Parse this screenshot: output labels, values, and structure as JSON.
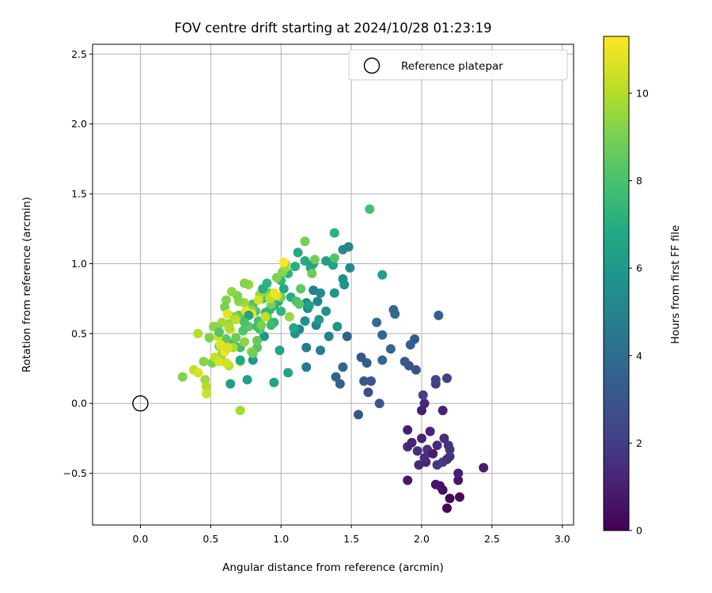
{
  "chart_data": {
    "type": "scatter",
    "title": "FOV centre drift starting at 2024/10/28 01:23:19",
    "xlabel": "Angular distance from reference (arcmin)",
    "ylabel": "Rotation from reference (arcmin)",
    "xlim": [
      -0.34,
      3.08
    ],
    "ylim": [
      -0.87,
      2.57
    ],
    "xticks": [
      0.0,
      0.5,
      1.0,
      1.5,
      2.0,
      2.5,
      3.0
    ],
    "xtick_labels": [
      "0.0",
      "0.5",
      "1.0",
      "1.5",
      "2.0",
      "2.5",
      "3.0"
    ],
    "yticks": [
      -0.5,
      0.0,
      0.5,
      1.0,
      1.5,
      2.0,
      2.5
    ],
    "ytick_labels": [
      "−0.5",
      "0.0",
      "0.5",
      "1.0",
      "1.5",
      "2.0",
      "2.5"
    ],
    "grid": true,
    "colormap": "viridis",
    "colorbar": {
      "label": "Hours from first FF file",
      "range": [
        0,
        11.3
      ],
      "ticks": [
        0,
        2,
        4,
        6,
        8,
        10
      ],
      "tick_labels": [
        "0",
        "2",
        "4",
        "6",
        "8",
        "10"
      ]
    },
    "legend": {
      "placement": "top-right",
      "entries": [
        {
          "label": "Reference platepar",
          "marker": "open-circle",
          "color": "#000000"
        }
      ]
    },
    "reference_point": {
      "x": 0.0,
      "y": 0.0
    },
    "points_format": [
      "x",
      "y",
      "hours"
    ],
    "points": [
      [
        2.18,
        -0.75,
        0.1
      ],
      [
        2.2,
        -0.68,
        0.2
      ],
      [
        2.27,
        -0.67,
        0.3
      ],
      [
        2.15,
        -0.62,
        0.4
      ],
      [
        2.13,
        -0.59,
        0.5
      ],
      [
        2.1,
        -0.58,
        0.6
      ],
      [
        2.26,
        -0.55,
        0.7
      ],
      [
        1.9,
        -0.55,
        0.8
      ],
      [
        2.44,
        -0.46,
        0.9
      ],
      [
        2.26,
        -0.5,
        1.0
      ],
      [
        2.18,
        -0.4,
        1.1
      ],
      [
        2.03,
        -0.42,
        1.2
      ],
      [
        1.98,
        -0.44,
        1.3
      ],
      [
        2.02,
        -0.39,
        1.4
      ],
      [
        2.05,
        -0.35,
        1.5
      ],
      [
        1.97,
        -0.34,
        1.6
      ],
      [
        2.2,
        -0.38,
        1.7
      ],
      [
        2.11,
        -0.44,
        1.8
      ],
      [
        2.15,
        -0.42,
        1.9
      ],
      [
        2.2,
        -0.33,
        1.8
      ],
      [
        2.19,
        -0.3,
        1.6
      ],
      [
        2.16,
        -0.25,
        1.5
      ],
      [
        2.11,
        -0.3,
        1.4
      ],
      [
        1.9,
        -0.31,
        1.3
      ],
      [
        1.93,
        -0.28,
        1.2
      ],
      [
        2.0,
        -0.25,
        1.1
      ],
      [
        1.9,
        -0.19,
        1.0
      ],
      [
        2.06,
        -0.2,
        1.2
      ],
      [
        2.15,
        -0.05,
        1.1
      ],
      [
        2.0,
        -0.05,
        1.0
      ],
      [
        2.04,
        -0.33,
        1.7
      ],
      [
        2.08,
        -0.36,
        0.9
      ],
      [
        2.02,
        0.0,
        1.2
      ],
      [
        2.1,
        0.14,
        2.0
      ],
      [
        2.18,
        0.18,
        2.2
      ],
      [
        2.1,
        0.17,
        2.4
      ],
      [
        2.01,
        0.06,
        2.2
      ],
      [
        1.96,
        0.24,
        2.8
      ],
      [
        1.91,
        0.27,
        3.0
      ],
      [
        1.88,
        0.3,
        3.1
      ],
      [
        1.95,
        0.46,
        3.2
      ],
      [
        1.92,
        0.42,
        3.3
      ],
      [
        2.12,
        0.63,
        3.4
      ],
      [
        1.78,
        0.39,
        3.6
      ],
      [
        1.72,
        0.31,
        3.8
      ],
      [
        1.7,
        0.0,
        3.0
      ],
      [
        1.62,
        0.08,
        2.8
      ],
      [
        1.64,
        0.16,
        2.9
      ],
      [
        1.59,
        0.16,
        3.1
      ],
      [
        1.61,
        0.29,
        3.3
      ],
      [
        1.57,
        0.33,
        3.1
      ],
      [
        1.55,
        -0.08,
        3.0
      ],
      [
        1.47,
        0.48,
        3.5
      ],
      [
        1.44,
        0.26,
        3.7
      ],
      [
        1.42,
        0.14,
        3.5
      ],
      [
        1.39,
        0.19,
        3.6
      ],
      [
        1.72,
        0.49,
        3.8
      ],
      [
        1.68,
        0.58,
        4.0
      ],
      [
        1.81,
        0.64,
        4.0
      ],
      [
        1.8,
        0.67,
        3.9
      ],
      [
        1.48,
        1.12,
        5.0
      ],
      [
        1.44,
        1.1,
        5.2
      ],
      [
        1.49,
        0.97,
        5.4
      ],
      [
        1.44,
        0.89,
        5.5
      ],
      [
        1.45,
        0.85,
        5.7
      ],
      [
        1.38,
        0.79,
        5.8
      ],
      [
        1.72,
        0.92,
        6.4
      ],
      [
        1.4,
        0.55,
        5.9
      ],
      [
        1.34,
        0.48,
        4.9
      ],
      [
        1.32,
        0.66,
        5.6
      ],
      [
        1.28,
        0.79,
        5.3
      ],
      [
        1.26,
        0.73,
        5.1
      ],
      [
        1.23,
        0.81,
        5.0
      ],
      [
        1.19,
        0.68,
        5.2
      ],
      [
        1.18,
        0.72,
        5.4
      ],
      [
        1.17,
        0.59,
        5.6
      ],
      [
        1.25,
        0.56,
        5.1
      ],
      [
        1.28,
        0.38,
        4.9
      ],
      [
        1.18,
        0.4,
        4.7
      ],
      [
        1.18,
        0.26,
        4.5
      ],
      [
        1.13,
        0.53,
        5.2
      ],
      [
        1.1,
        0.5,
        5.6
      ],
      [
        1.09,
        0.54,
        6.8
      ],
      [
        1.05,
        0.22,
        6.7
      ],
      [
        0.99,
        0.38,
        6.6
      ],
      [
        0.95,
        0.15,
        6.5
      ],
      [
        0.76,
        0.17,
        6.4
      ],
      [
        0.64,
        0.14,
        6.3
      ],
      [
        0.8,
        0.31,
        6.0
      ],
      [
        0.88,
        0.48,
        5.8
      ],
      [
        1.2,
        0.7,
        6.4
      ],
      [
        1.12,
        1.08,
        6.8
      ],
      [
        1.17,
        1.02,
        6.9
      ],
      [
        1.21,
        0.97,
        6.6
      ],
      [
        1.23,
        1.0,
        6.6
      ],
      [
        1.32,
        1.02,
        6.3
      ],
      [
        1.37,
        0.99,
        6.6
      ],
      [
        1.38,
        1.22,
        7.1
      ],
      [
        1.1,
        0.98,
        7.0
      ],
      [
        1.05,
        0.93,
        7.2
      ],
      [
        1.0,
        0.88,
        7.4
      ],
      [
        1.07,
        0.76,
        7.0
      ],
      [
        1.02,
        0.82,
        6.8
      ],
      [
        0.98,
        0.73,
        6.9
      ],
      [
        0.95,
        0.7,
        7.2
      ],
      [
        1.0,
        0.66,
        7.3
      ],
      [
        0.92,
        0.67,
        7.5
      ],
      [
        0.89,
        0.65,
        7.4
      ],
      [
        0.87,
        0.75,
        7.6
      ],
      [
        0.91,
        0.79,
        7.7
      ],
      [
        0.95,
        0.58,
        7.5
      ],
      [
        0.93,
        0.56,
        7.6
      ],
      [
        0.9,
        0.62,
        7.8
      ],
      [
        0.84,
        0.59,
        8.0
      ],
      [
        0.82,
        0.66,
        8.2
      ],
      [
        0.8,
        0.71,
        8.1
      ],
      [
        0.85,
        0.53,
        8.3
      ],
      [
        0.77,
        0.55,
        8.4
      ],
      [
        0.73,
        0.52,
        8.2
      ],
      [
        0.73,
        0.6,
        8.6
      ],
      [
        0.7,
        0.63,
        8.5
      ],
      [
        0.71,
        0.4,
        7.8
      ],
      [
        0.66,
        0.43,
        7.9
      ],
      [
        0.61,
        0.46,
        8.4
      ],
      [
        0.83,
        0.4,
        8.3
      ],
      [
        0.83,
        0.45,
        8.6
      ],
      [
        1.11,
        0.73,
        8.1
      ],
      [
        1.13,
        0.71,
        8.3
      ],
      [
        1.14,
        0.82,
        8.5
      ],
      [
        1.24,
        1.03,
        8.8
      ],
      [
        1.22,
        0.93,
        8.7
      ],
      [
        1.17,
        1.16,
        8.9
      ],
      [
        1.38,
        1.04,
        8.2
      ],
      [
        1.63,
        1.39,
        7.9
      ],
      [
        1.0,
        0.76,
        8.9
      ],
      [
        0.97,
        0.9,
        9.1
      ],
      [
        1.01,
        0.94,
        9.2
      ],
      [
        1.03,
        1.0,
        9.4
      ],
      [
        1.03,
        0.97,
        9.6
      ],
      [
        0.93,
        0.71,
        9.0
      ],
      [
        0.88,
        0.8,
        9.3
      ],
      [
        0.85,
        0.78,
        9.5
      ],
      [
        0.77,
        0.85,
        9.5
      ],
      [
        0.74,
        0.86,
        9.2
      ],
      [
        0.79,
        0.67,
        9.3
      ],
      [
        0.74,
        0.72,
        9.7
      ],
      [
        0.7,
        0.73,
        9.4
      ],
      [
        0.69,
        0.77,
        9.1
      ],
      [
        0.65,
        0.8,
        9.4
      ],
      [
        0.61,
        0.74,
        9.2
      ],
      [
        0.6,
        0.69,
        9.0
      ],
      [
        0.67,
        0.62,
        9.3
      ],
      [
        0.63,
        0.57,
        9.6
      ],
      [
        0.58,
        0.58,
        9.8
      ],
      [
        0.55,
        0.55,
        9.5
      ],
      [
        0.52,
        0.55,
        9.3
      ],
      [
        0.49,
        0.47,
        9.1
      ],
      [
        0.56,
        0.41,
        9.2
      ],
      [
        0.58,
        0.35,
        9.4
      ],
      [
        0.51,
        0.29,
        9.0
      ],
      [
        0.45,
        0.3,
        9.2
      ],
      [
        0.46,
        0.17,
        9.7
      ],
      [
        0.3,
        0.19,
        9.2
      ],
      [
        0.47,
        0.12,
        10.0
      ],
      [
        0.47,
        0.07,
        10.4
      ],
      [
        0.71,
        -0.05,
        9.8
      ],
      [
        0.71,
        0.3,
        9.6
      ],
      [
        0.63,
        0.27,
        10.1
      ],
      [
        0.61,
        0.29,
        10.5
      ],
      [
        0.66,
        0.4,
        9.9
      ],
      [
        0.53,
        0.33,
        10.3
      ],
      [
        0.56,
        0.3,
        10.6
      ],
      [
        0.38,
        0.24,
        10.2
      ],
      [
        0.41,
        0.22,
        10.6
      ],
      [
        0.41,
        0.5,
        10.1
      ],
      [
        0.55,
        0.48,
        10.4
      ],
      [
        0.57,
        0.42,
        10.8
      ],
      [
        0.6,
        0.37,
        11.0
      ],
      [
        0.62,
        0.4,
        10.7
      ],
      [
        0.64,
        0.53,
        10.5
      ],
      [
        0.68,
        0.6,
        10.2
      ],
      [
        0.62,
        0.64,
        10.8
      ],
      [
        0.75,
        0.66,
        10.9
      ],
      [
        0.79,
        0.64,
        11.1
      ],
      [
        0.84,
        0.74,
        10.6
      ],
      [
        0.89,
        0.62,
        10.3
      ],
      [
        0.92,
        0.75,
        10.2
      ],
      [
        0.97,
        0.77,
        10.7
      ],
      [
        0.95,
        0.79,
        11.0
      ],
      [
        1.02,
        1.01,
        11.3
      ],
      [
        0.79,
        0.37,
        9.6
      ],
      [
        0.71,
        0.31,
        6.7
      ],
      [
        0.87,
        0.82,
        7.0
      ],
      [
        0.9,
        0.86,
        7.3
      ],
      [
        0.83,
        0.55,
        7.6
      ],
      [
        0.77,
        0.63,
        6.5
      ],
      [
        0.74,
        0.58,
        8.0
      ],
      [
        0.8,
        0.36,
        8.8
      ],
      [
        0.63,
        0.54,
        9.9
      ],
      [
        0.56,
        0.51,
        8.3
      ],
      [
        0.68,
        0.47,
        8.7
      ],
      [
        0.74,
        0.44,
        9.4
      ],
      [
        0.86,
        0.56,
        9.0
      ],
      [
        1.27,
        0.6,
        6.2
      ],
      [
        1.06,
        0.62,
        9.5
      ]
    ]
  }
}
